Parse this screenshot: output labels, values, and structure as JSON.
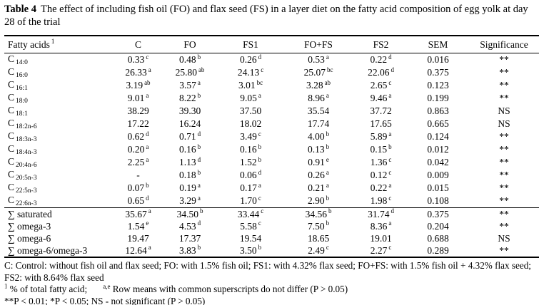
{
  "title": {
    "label": "Table 4",
    "text": "The effect of including fish oil (FO) and flax seed (FS) in a layer diet on the fatty acid composition of egg yolk at day 28 of the trial"
  },
  "table": {
    "columns": [
      "Fatty acids",
      "C",
      "FO",
      "FS1",
      "FO+FS",
      "FS2",
      "SEM",
      "Significance"
    ],
    "header_superscript": "1",
    "rows": [
      {
        "label": "C",
        "sub": "14:0",
        "values": [
          {
            "v": "0.33",
            "s": "c"
          },
          {
            "v": "0.48",
            "s": "b"
          },
          {
            "v": "0.26",
            "s": "d"
          },
          {
            "v": "0.53",
            "s": "a"
          },
          {
            "v": "0.22",
            "s": "d"
          }
        ],
        "sem": "0.016",
        "sig": "**"
      },
      {
        "label": "C",
        "sub": "16:0",
        "values": [
          {
            "v": "26.33",
            "s": "a"
          },
          {
            "v": "25.80",
            "s": "ab"
          },
          {
            "v": "24.13",
            "s": "c"
          },
          {
            "v": "25.07",
            "s": "bc"
          },
          {
            "v": "22.06",
            "s": "d"
          }
        ],
        "sem": "0.375",
        "sig": "**"
      },
      {
        "label": "C",
        "sub": "16:1",
        "values": [
          {
            "v": "3.19",
            "s": "ab"
          },
          {
            "v": "3.57",
            "s": "a"
          },
          {
            "v": "3.01",
            "s": "bc"
          },
          {
            "v": "3.28",
            "s": "ab"
          },
          {
            "v": "2.65",
            "s": "c"
          }
        ],
        "sem": "0.123",
        "sig": "**"
      },
      {
        "label": "C",
        "sub": "18:0",
        "values": [
          {
            "v": "9.01",
            "s": "a"
          },
          {
            "v": "8.22",
            "s": "b"
          },
          {
            "v": "9.05",
            "s": "a"
          },
          {
            "v": "8.96",
            "s": "a"
          },
          {
            "v": "9.46",
            "s": "a"
          }
        ],
        "sem": "0.199",
        "sig": "**"
      },
      {
        "label": "C",
        "sub": "18:1",
        "values": [
          {
            "v": "38.29",
            "s": ""
          },
          {
            "v": "39.30",
            "s": ""
          },
          {
            "v": "37.50",
            "s": ""
          },
          {
            "v": "35.54",
            "s": ""
          },
          {
            "v": "37.72",
            "s": ""
          }
        ],
        "sem": "0.863",
        "sig": "NS"
      },
      {
        "label": "C",
        "sub": "18:2n-6",
        "values": [
          {
            "v": "17.22",
            "s": ""
          },
          {
            "v": "16.24",
            "s": ""
          },
          {
            "v": "18.02",
            "s": ""
          },
          {
            "v": "17.74",
            "s": ""
          },
          {
            "v": "17.65",
            "s": ""
          }
        ],
        "sem": "0.665",
        "sig": "NS"
      },
      {
        "label": "C",
        "sub": "18:3n-3",
        "values": [
          {
            "v": "0.62",
            "s": "d"
          },
          {
            "v": "0.71",
            "s": "d"
          },
          {
            "v": "3.49",
            "s": "c"
          },
          {
            "v": "4.00",
            "s": "b"
          },
          {
            "v": "5.89",
            "s": "a"
          }
        ],
        "sem": "0.124",
        "sig": "**"
      },
      {
        "label": "C",
        "sub": "18:4n-3",
        "values": [
          {
            "v": "0.20",
            "s": "a"
          },
          {
            "v": "0.16",
            "s": "b"
          },
          {
            "v": "0.16",
            "s": "b"
          },
          {
            "v": "0.13",
            "s": "b"
          },
          {
            "v": "0.15",
            "s": "b"
          }
        ],
        "sem": "0.012",
        "sig": "**"
      },
      {
        "label": "C",
        "sub": "20:4n-6",
        "values": [
          {
            "v": "2.25",
            "s": "a"
          },
          {
            "v": "1.13",
            "s": "d"
          },
          {
            "v": "1.52",
            "s": "b"
          },
          {
            "v": "0.91",
            "s": "e"
          },
          {
            "v": "1.36",
            "s": "c"
          }
        ],
        "sem": "0.042",
        "sig": "**"
      },
      {
        "label": "C",
        "sub": "20:5n-3",
        "values": [
          {
            "v": "-",
            "s": ""
          },
          {
            "v": "0.18",
            "s": "b"
          },
          {
            "v": "0.06",
            "s": "d"
          },
          {
            "v": "0.26",
            "s": "a"
          },
          {
            "v": "0.12",
            "s": "c"
          }
        ],
        "sem": "0.009",
        "sig": "**"
      },
      {
        "label": "C",
        "sub": "22:5n-3",
        "values": [
          {
            "v": "0.07",
            "s": "b"
          },
          {
            "v": "0.19",
            "s": "a"
          },
          {
            "v": "0.17",
            "s": "a"
          },
          {
            "v": "0.21",
            "s": "a"
          },
          {
            "v": "0.22",
            "s": "a"
          }
        ],
        "sem": "0.015",
        "sig": "**"
      },
      {
        "label": "C",
        "sub": "22:6n-3",
        "values": [
          {
            "v": "0.65",
            "s": "d"
          },
          {
            "v": "3.29",
            "s": "a"
          },
          {
            "v": "1.70",
            "s": "c"
          },
          {
            "v": "2.90",
            "s": "b"
          },
          {
            "v": "1.98",
            "s": "c"
          }
        ],
        "sem": "0.108",
        "sig": "**"
      }
    ],
    "summary_rows": [
      {
        "label": "∑ saturated",
        "sub": "",
        "values": [
          {
            "v": "35.67",
            "s": "a"
          },
          {
            "v": "34.50",
            "s": "b"
          },
          {
            "v": "33.44",
            "s": "c"
          },
          {
            "v": "34.56",
            "s": "b"
          },
          {
            "v": "31.74",
            "s": "d"
          }
        ],
        "sem": "0.375",
        "sig": "**"
      },
      {
        "label": "∑ omega-3",
        "sub": "",
        "values": [
          {
            "v": "1.54",
            "s": "e"
          },
          {
            "v": "4.53",
            "s": "d"
          },
          {
            "v": "5.58",
            "s": "c"
          },
          {
            "v": "7.50",
            "s": "b"
          },
          {
            "v": "8.36",
            "s": "a"
          }
        ],
        "sem": "0.204",
        "sig": "**"
      },
      {
        "label": "∑ omega-6",
        "sub": "",
        "values": [
          {
            "v": "19.47",
            "s": ""
          },
          {
            "v": "17.37",
            "s": ""
          },
          {
            "v": "19.54",
            "s": ""
          },
          {
            "v": "18.65",
            "s": ""
          },
          {
            "v": "19.01",
            "s": ""
          }
        ],
        "sem": "0.688",
        "sig": "NS"
      },
      {
        "label": "∑ omega-6/omega-3",
        "sub": "",
        "values": [
          {
            "v": "12.64",
            "s": "a"
          },
          {
            "v": "3.83",
            "s": "b"
          },
          {
            "v": "3.50",
            "s": "b"
          },
          {
            "v": "2.49",
            "s": "c"
          },
          {
            "v": "2.27",
            "s": "c"
          }
        ],
        "sem": "0.289",
        "sig": "**"
      }
    ]
  },
  "footnotes": {
    "line1": "C: Control: without fish oil and flax seed; FO: with 1.5% fish oil; FS1: with 4.32% flax seed; FO+FS: with 1.5% fish oil + 4.32% flax seed; FS2: with 8.64% flax seed",
    "line2_sup1": "1",
    "line2_text1": " % of total fatty acid;",
    "line2_sup2": "a,e",
    "line2_text2": " Row means with common superscripts do not differ (P > 0.05)",
    "line3": "**P < 0.01;  *P < 0.05;  NS - not significant (P > 0.05)"
  }
}
